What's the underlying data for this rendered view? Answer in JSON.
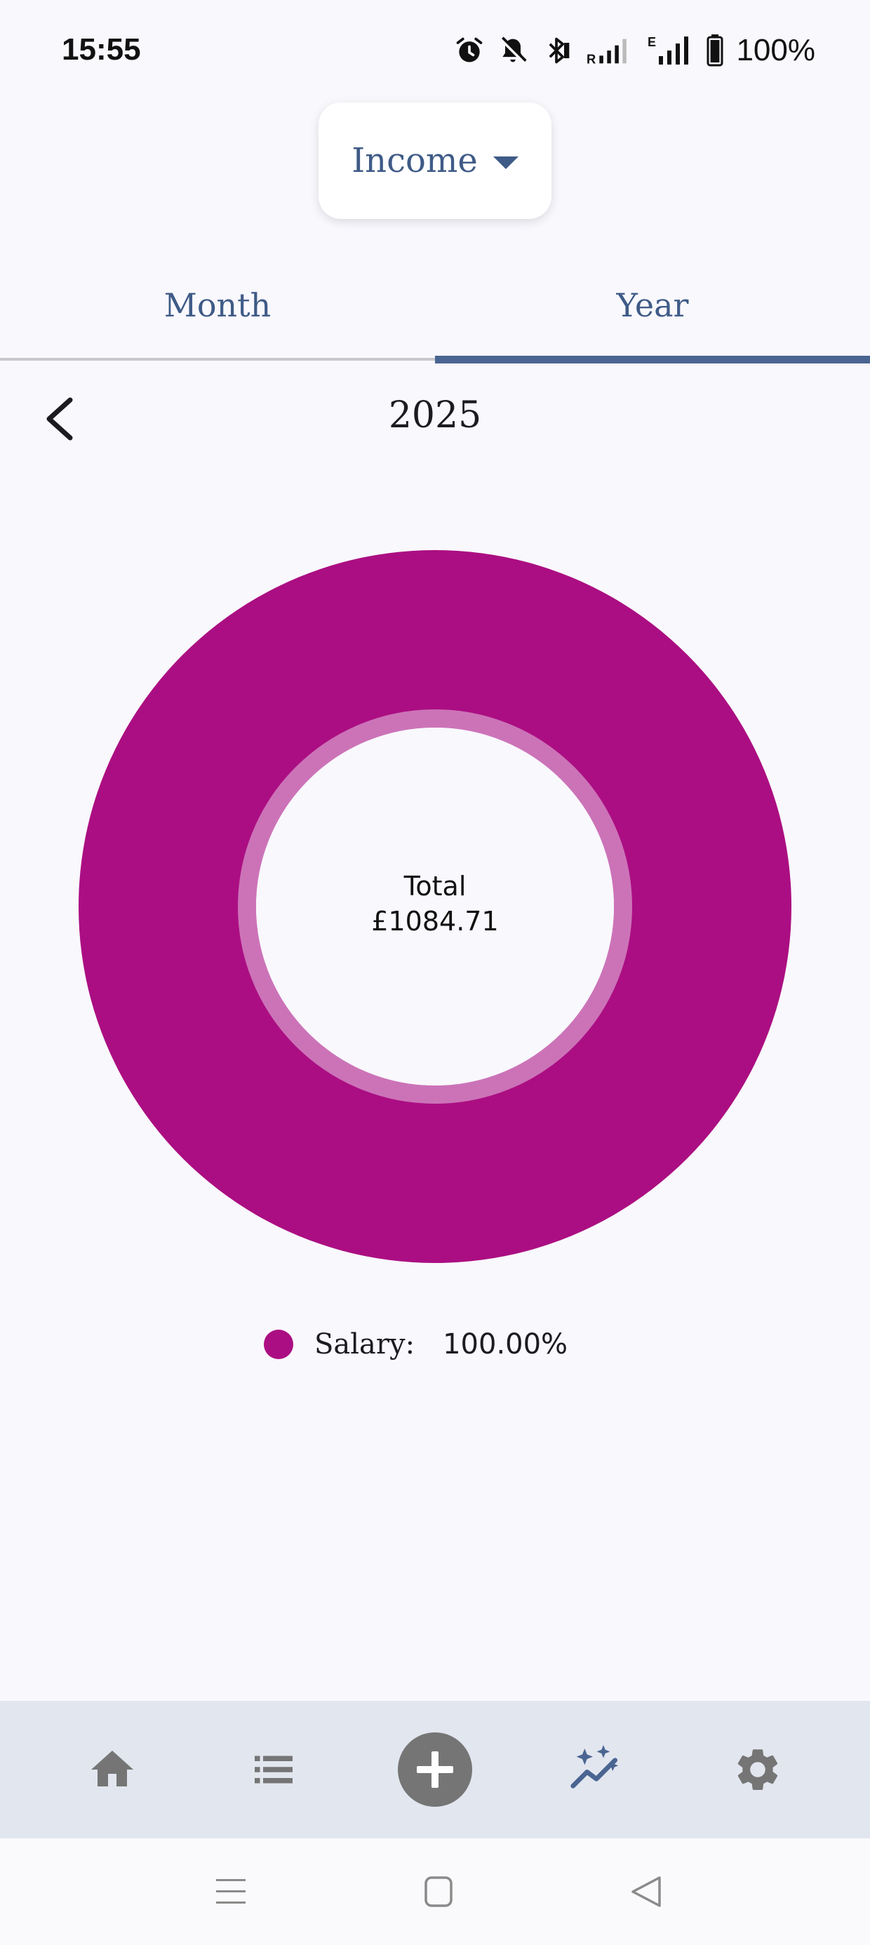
{
  "status_bar": {
    "time": "15:55",
    "battery": "100%",
    "icons": [
      "alarm-icon",
      "mute-icon",
      "bluetooth-icon",
      "signal-roaming-icon",
      "signal-icon",
      "battery-icon"
    ]
  },
  "type_selector": {
    "selected": "Income",
    "icon": "caret-down-icon"
  },
  "tabs": [
    {
      "label": "Month",
      "active": false
    },
    {
      "label": "Year",
      "active": true
    }
  ],
  "period": {
    "label": "2025",
    "back_icon": "chevron-left-icon"
  },
  "chart_center": {
    "title": "Total",
    "amount": "£1084.71"
  },
  "chart_data": {
    "type": "pie",
    "categories": [
      "Salary"
    ],
    "values": [
      100.0
    ],
    "colors": [
      "#ab0e82"
    ]
  },
  "legend": [
    {
      "name": "Salary:",
      "value": "100.00%",
      "color": "#ab0e82"
    }
  ],
  "bottom_nav": [
    {
      "name": "home",
      "icon": "home-icon",
      "active": false
    },
    {
      "name": "transactions",
      "icon": "list-icon",
      "active": false
    },
    {
      "name": "add",
      "icon": "plus-circle-icon",
      "active": false
    },
    {
      "name": "statistics",
      "icon": "chart-sparkle-icon",
      "active": true
    },
    {
      "name": "settings",
      "icon": "gear-icon",
      "active": false
    }
  ],
  "colors": {
    "accent": "#4a6591",
    "chart_slice": "#ab0e82",
    "chart_inner_ring": "#cc73b8",
    "nav_icon": "#757575",
    "nav_active": "#4a6591"
  }
}
